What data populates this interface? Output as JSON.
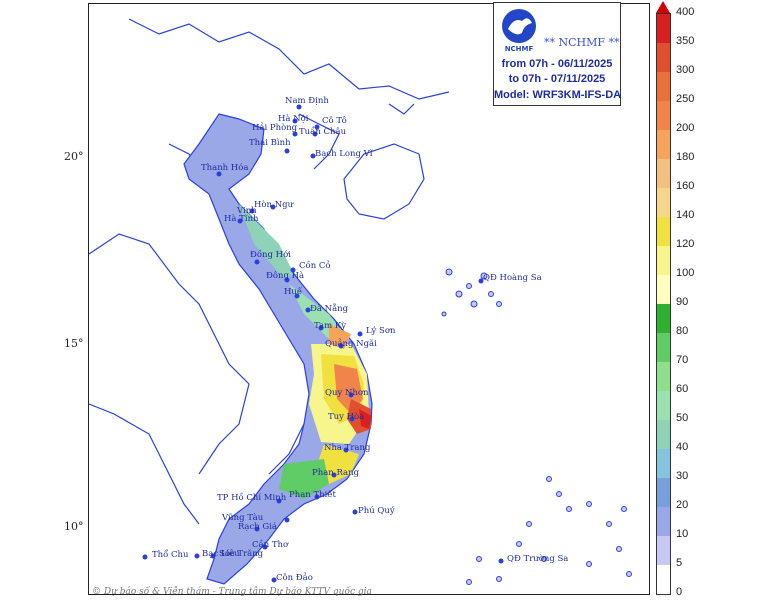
{
  "map": {
    "latitude_labels": [
      {
        "text": "20°"
      },
      {
        "text": "15°"
      },
      {
        "text": "10°"
      }
    ],
    "places": [
      {
        "name": "Nam Định",
        "kind": "label"
      },
      {
        "name": "Hà Nội",
        "kind": "label"
      },
      {
        "name": "Cô Tô",
        "kind": "label"
      },
      {
        "name": "Hải Phòng",
        "kind": "label"
      },
      {
        "name": "Tuần Châu",
        "kind": "label"
      },
      {
        "name": "Thái Bình",
        "kind": "label"
      },
      {
        "name": "Bạch Long Vĩ",
        "kind": "label"
      },
      {
        "name": "Thanh Hóa",
        "kind": "label"
      },
      {
        "name": "Hòn Ngư",
        "kind": "label"
      },
      {
        "name": "Vinh",
        "kind": "label"
      },
      {
        "name": "Hà Tĩnh",
        "kind": "label"
      },
      {
        "name": "Đồng Hới",
        "kind": "label"
      },
      {
        "name": "Cồn Cỏ",
        "kind": "label"
      },
      {
        "name": "Đông Hà",
        "kind": "label"
      },
      {
        "name": "Huế",
        "kind": "label"
      },
      {
        "name": "QĐ Hoàng Sa",
        "kind": "label"
      },
      {
        "name": "Đà Nẵng",
        "kind": "label"
      },
      {
        "name": "Tam Kỳ",
        "kind": "label"
      },
      {
        "name": "Lý Sơn",
        "kind": "label"
      },
      {
        "name": "Quảng Ngãi",
        "kind": "label"
      },
      {
        "name": "Quy Nhơn",
        "kind": "label"
      },
      {
        "name": "Tuy Hòa",
        "kind": "label"
      },
      {
        "name": "Nha Trang",
        "kind": "label"
      },
      {
        "name": "Phan Rang",
        "kind": "label"
      },
      {
        "name": "Phan Thiết",
        "kind": "label"
      },
      {
        "name": "TP Hồ Chí Minh",
        "kind": "label"
      },
      {
        "name": "Vũng Tàu",
        "kind": "label"
      },
      {
        "name": "Phú Quý",
        "kind": "label"
      },
      {
        "name": "Rạch Giá",
        "kind": "label"
      },
      {
        "name": "Cần Thơ",
        "kind": "label"
      },
      {
        "name": "Sóc Trăng",
        "kind": "label"
      },
      {
        "name": "Thổ Chu",
        "kind": "label"
      },
      {
        "name": "Bạc Liêu",
        "kind": "label"
      },
      {
        "name": "QĐ Trường Sa",
        "kind": "label"
      },
      {
        "name": "Côn Đảo",
        "kind": "label"
      }
    ]
  },
  "info_box": {
    "org": "** NCHMF **",
    "logo_text": "NCHMF",
    "line1": "from 07h - 06/11/2025",
    "line2": "to 07h - 07/11/2025",
    "line3": "Model: WRF3KM-IFS-DA"
  },
  "copyright": "© Dự báo số & Viễn thám - Trung tâm Dự báo KTTV quốc gia",
  "colorbar": {
    "tick_labels": [
      "0",
      "5",
      "10",
      "20",
      "30",
      "40",
      "50",
      "60",
      "70",
      "80",
      "90",
      "100",
      "120",
      "140",
      "160",
      "180",
      "200",
      "250",
      "300",
      "350",
      "400"
    ],
    "colors": [
      "#ffffff",
      "#c8c8f5",
      "#9aa8e8",
      "#7aa0dc",
      "#86c4de",
      "#8ed3b8",
      "#9ae0b0",
      "#8ede8e",
      "#60cc66",
      "#30b030",
      "#ffffc0",
      "#f6f68c",
      "#f0e040",
      "#f6d68a",
      "#f2c080",
      "#f6a45c",
      "#f0844a",
      "#e8703a",
      "#e05030",
      "#d82020"
    ],
    "arrow_color": "#d40000"
  }
}
